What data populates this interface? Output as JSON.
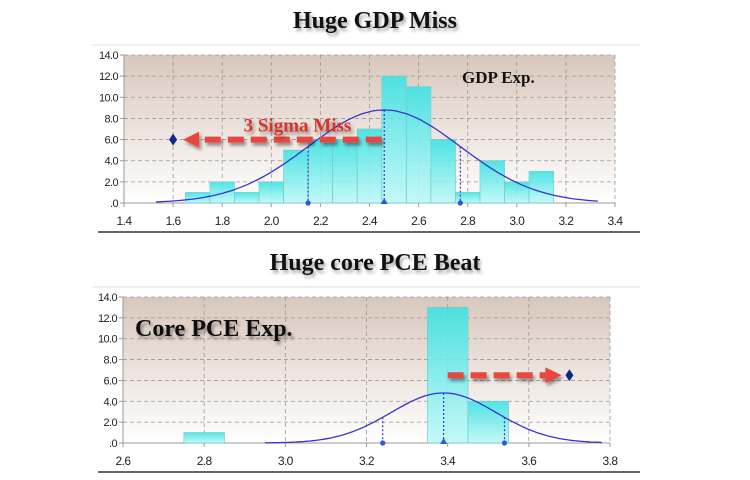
{
  "chart_data": [
    {
      "type": "bar",
      "subtype": "histogram-with-normal-fit",
      "title": "Huge GDP Miss",
      "inset_label": "GDP Exp.",
      "annotation": {
        "text": "3 Sigma Miss",
        "arrow_from_x": 2.45,
        "arrow_to_x": 1.6,
        "y": 6.0,
        "direction": "left"
      },
      "actual_marker": {
        "x": 1.6,
        "y": 6.0
      },
      "bins": [
        {
          "from": 1.65,
          "to": 1.75,
          "value": 1
        },
        {
          "from": 1.75,
          "to": 1.85,
          "value": 2
        },
        {
          "from": 1.85,
          "to": 1.95,
          "value": 1
        },
        {
          "from": 1.95,
          "to": 2.05,
          "value": 2
        },
        {
          "from": 2.05,
          "to": 2.15,
          "value": 5
        },
        {
          "from": 2.15,
          "to": 2.25,
          "value": 6
        },
        {
          "from": 2.25,
          "to": 2.35,
          "value": 6
        },
        {
          "from": 2.35,
          "to": 2.45,
          "value": 7
        },
        {
          "from": 2.45,
          "to": 2.55,
          "value": 12
        },
        {
          "from": 2.55,
          "to": 2.65,
          "value": 11
        },
        {
          "from": 2.65,
          "to": 2.75,
          "value": 6
        },
        {
          "from": 2.75,
          "to": 2.85,
          "value": 1
        },
        {
          "from": 2.85,
          "to": 2.95,
          "value": 4
        },
        {
          "from": 2.95,
          "to": 3.05,
          "value": 2
        },
        {
          "from": 3.05,
          "to": 3.15,
          "value": 3
        }
      ],
      "normal_fit": {
        "mean": 2.46,
        "peak": 8.8,
        "sigma": 0.31,
        "x_range": [
          1.53,
          3.33
        ]
      },
      "markers": [
        {
          "x": 2.15,
          "kind": "circle"
        },
        {
          "x": 2.46,
          "kind": "triangle"
        },
        {
          "x": 2.77,
          "kind": "circle"
        }
      ],
      "xlim": [
        1.4,
        3.4
      ],
      "ylim": [
        0,
        14
      ],
      "xticks": [
        "1.4",
        "1.6",
        "1.8",
        "2.0",
        "2.2",
        "2.4",
        "2.6",
        "2.8",
        "3.0",
        "3.2",
        "3.4"
      ],
      "yticks": [
        ".0",
        "2.0",
        "4.0",
        "6.0",
        "8.0",
        "10.0",
        "12.0",
        "14.0"
      ],
      "grid": true
    },
    {
      "type": "bar",
      "subtype": "histogram-with-normal-fit",
      "title": "Huge core PCE Beat",
      "inset_label": "Core PCE Exp.",
      "annotation": {
        "text": "",
        "arrow_from_x": 3.4,
        "arrow_to_x": 3.7,
        "y": 6.5,
        "direction": "right"
      },
      "actual_marker": {
        "x": 3.7,
        "y": 6.5
      },
      "bins": [
        {
          "from": 2.75,
          "to": 2.85,
          "value": 1
        },
        {
          "from": 3.35,
          "to": 3.45,
          "value": 13
        },
        {
          "from": 3.45,
          "to": 3.55,
          "value": 4
        }
      ],
      "normal_fit": {
        "mean": 3.39,
        "peak": 4.8,
        "sigma": 0.13,
        "x_range": [
          2.95,
          3.78
        ]
      },
      "markers": [
        {
          "x": 3.24,
          "kind": "circle"
        },
        {
          "x": 3.39,
          "kind": "triangle"
        },
        {
          "x": 3.54,
          "kind": "circle"
        }
      ],
      "xlim": [
        2.6,
        3.8
      ],
      "ylim": [
        0,
        14
      ],
      "xticks": [
        "2.6",
        "2.8",
        "3.0",
        "3.2",
        "3.4",
        "3.6",
        "3.8"
      ],
      "yticks": [
        ".0",
        "2.0",
        "4.0",
        "6.0",
        "8.0",
        "10.0",
        "12.0",
        "14.0"
      ],
      "grid": true
    }
  ],
  "colors": {
    "bar_top": "#3fe3e3",
    "bar_bottom": "#bff8f8",
    "curve": "#3a33d0",
    "arrow": "#e8463f",
    "marker": "#0a2a8a",
    "plot_bg_top": "#d9c7bb"
  }
}
